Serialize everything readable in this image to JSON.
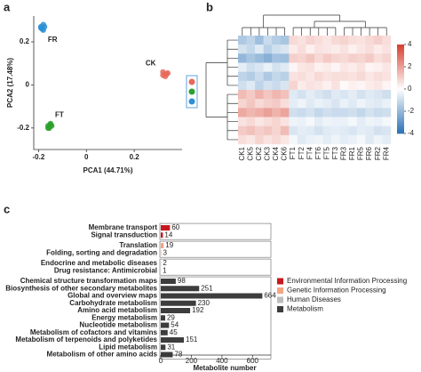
{
  "chart_data": [
    {
      "type": "scatter",
      "panel_label": "a",
      "x_label": "PCA1 (44.71%)",
      "y_label": "PCA2 (17.48%)",
      "xlim": [
        -0.22,
        0.4
      ],
      "ylim": [
        -0.3,
        0.32
      ],
      "xticks": [
        -0.2,
        0,
        0.2
      ],
      "yticks": [
        -0.2,
        0,
        0.2
      ],
      "series": [
        {
          "name": "CK",
          "color": "#e8685a",
          "x": [
            0.32,
            0.33,
            0.34,
            0.33,
            0.32,
            0.335
          ],
          "y": [
            0.06,
            0.05,
            0.055,
            0.04,
            0.045,
            0.05
          ]
        },
        {
          "name": "FT",
          "color": "#2ca02c",
          "x": [
            -0.16,
            -0.15,
            -0.155,
            -0.145,
            -0.16,
            -0.15
          ],
          "y": [
            -0.19,
            -0.18,
            -0.2,
            -0.19,
            -0.2,
            -0.185
          ]
        },
        {
          "name": "FR",
          "color": "#2b8fd6",
          "x": [
            -0.19,
            -0.18,
            -0.185,
            -0.175,
            -0.18,
            -0.19
          ],
          "y": [
            0.27,
            0.28,
            0.26,
            0.27,
            0.255,
            0.265
          ]
        }
      ]
    },
    {
      "type": "heatmap",
      "panel_label": "b",
      "columns": [
        "CK1",
        "CK5",
        "CK2",
        "CK3",
        "CK4",
        "CK6",
        "FT1",
        "FT2",
        "FT4",
        "FT6",
        "FT5",
        "FT3",
        "FR3",
        "FR1",
        "FR5",
        "FR6",
        "FR2",
        "FR4"
      ],
      "clim": [
        -4,
        4
      ],
      "colorbar_ticks": [
        -4,
        -2,
        0,
        2,
        4
      ],
      "colors": [
        "#2870b5",
        "#ffffff",
        "#d6402f"
      ],
      "values": [
        [
          -1.5,
          -1.2,
          -1.8,
          -1.0,
          -1.4,
          -1.6,
          0.8,
          0.6,
          0.9,
          0.7,
          0.5,
          0.8,
          0.9,
          0.7,
          0.6,
          0.8,
          1.0,
          0.7
        ],
        [
          -0.8,
          -1.1,
          -0.6,
          -1.3,
          -0.9,
          -0.7,
          0.4,
          0.7,
          0.3,
          0.6,
          0.5,
          0.4,
          0.6,
          0.3,
          0.5,
          0.7,
          0.4,
          0.6
        ],
        [
          -2.0,
          -1.6,
          -1.9,
          -2.2,
          -1.7,
          -1.8,
          1.0,
          0.9,
          1.2,
          0.8,
          1.1,
          0.9,
          0.8,
          1.0,
          0.9,
          1.1,
          0.7,
          0.9
        ],
        [
          -0.5,
          -0.9,
          -0.7,
          -0.4,
          -0.8,
          -0.6,
          0.2,
          0.5,
          0.6,
          0.3,
          0.4,
          0.2,
          0.5,
          0.4,
          0.6,
          0.2,
          0.3,
          0.5
        ],
        [
          -1.2,
          -1.4,
          -1.0,
          -1.5,
          -1.1,
          -1.3,
          0.6,
          0.7,
          0.5,
          0.8,
          0.6,
          0.7,
          0.7,
          0.6,
          0.8,
          0.5,
          0.7,
          0.6
        ],
        [
          -0.9,
          -0.6,
          -1.2,
          -0.8,
          -1.0,
          -0.7,
          0.9,
          0.4,
          0.6,
          0.5,
          0.3,
          0.6,
          0.1,
          0.3,
          0.2,
          0.4,
          0.5,
          0.2
        ],
        [
          1.4,
          1.1,
          1.6,
          1.2,
          1.5,
          1.3,
          -0.6,
          -0.8,
          -0.5,
          -0.7,
          -0.9,
          -0.6,
          -0.7,
          -0.5,
          -0.8,
          -0.6,
          -0.7,
          -0.9
        ],
        [
          0.9,
          1.2,
          0.8,
          1.0,
          1.1,
          0.7,
          -0.5,
          -0.3,
          -0.6,
          -0.4,
          -0.5,
          -0.7,
          -0.4,
          -0.6,
          -0.3,
          -0.5,
          -0.6,
          -0.4
        ],
        [
          1.8,
          1.5,
          1.7,
          2.0,
          1.6,
          1.9,
          -0.9,
          -1.0,
          -0.8,
          -1.1,
          -0.9,
          -1.0,
          -1.0,
          -0.9,
          -1.1,
          -0.8,
          -1.0,
          -0.9
        ],
        [
          0.6,
          0.8,
          0.5,
          0.7,
          0.9,
          0.6,
          -0.3,
          -0.4,
          -0.2,
          -0.5,
          -0.3,
          -0.4,
          -0.4,
          -0.2,
          -0.5,
          -0.3,
          -0.4,
          -0.2
        ],
        [
          1.1,
          1.3,
          1.0,
          1.2,
          0.9,
          1.4,
          -0.7,
          -0.5,
          -0.6,
          -0.8,
          -0.6,
          -0.5,
          -0.6,
          -0.7,
          -0.5,
          -0.6,
          -0.8,
          -0.7
        ],
        [
          0.7,
          0.5,
          0.9,
          0.6,
          0.8,
          0.5,
          -0.2,
          -0.6,
          -0.4,
          -0.3,
          -0.5,
          -0.3,
          -0.5,
          -0.4,
          -0.2,
          -0.6,
          -0.3,
          -0.5
        ]
      ]
    },
    {
      "type": "hbar",
      "panel_label": "c",
      "x_label": "Metabolite number",
      "xlim": [
        0,
        720
      ],
      "xticks": [
        0,
        200,
        400,
        600
      ],
      "categories": [
        "Membrane transport",
        "Signal transduction",
        "Translation",
        "Folding, sorting and degradation",
        "Endocrine and metabolic diseases",
        "Drug resistance: Antimicrobial",
        "Chemical structure transformation maps",
        "Biosynthesis of other secondary metabolites",
        "Global and overview maps",
        "Carbohydrate metabolism",
        "Amino acid metabolism",
        "Energy metabolism",
        "Nucleotide metabolism",
        "Metabolism of cofactors and vitamins",
        "Metabolism of terpenoids and polyketides",
        "Lipid metabolism",
        "Metabolism of other amino acids"
      ],
      "series": [
        {
          "name": "Environmental Information Processing",
          "color": "#c8171e",
          "values": [
            60,
            14,
            null,
            null,
            null,
            null,
            null,
            null,
            null,
            null,
            null,
            null,
            null,
            null,
            null,
            null,
            null
          ]
        },
        {
          "name": "Genetic Information Processing",
          "color": "#f4a582",
          "values": [
            null,
            null,
            19,
            3,
            null,
            null,
            null,
            null,
            null,
            null,
            null,
            null,
            null,
            null,
            null,
            null,
            null
          ]
        },
        {
          "name": "Human Diseases",
          "color": "#bdbdbd",
          "values": [
            null,
            null,
            null,
            null,
            2,
            1,
            null,
            null,
            null,
            null,
            null,
            null,
            null,
            null,
            null,
            null,
            null
          ]
        },
        {
          "name": "Metabolism",
          "color": "#3d3d3d",
          "values": [
            null,
            null,
            null,
            null,
            null,
            null,
            98,
            251,
            664,
            230,
            192,
            29,
            54,
            45,
            151,
            31,
            78
          ]
        }
      ]
    }
  ]
}
